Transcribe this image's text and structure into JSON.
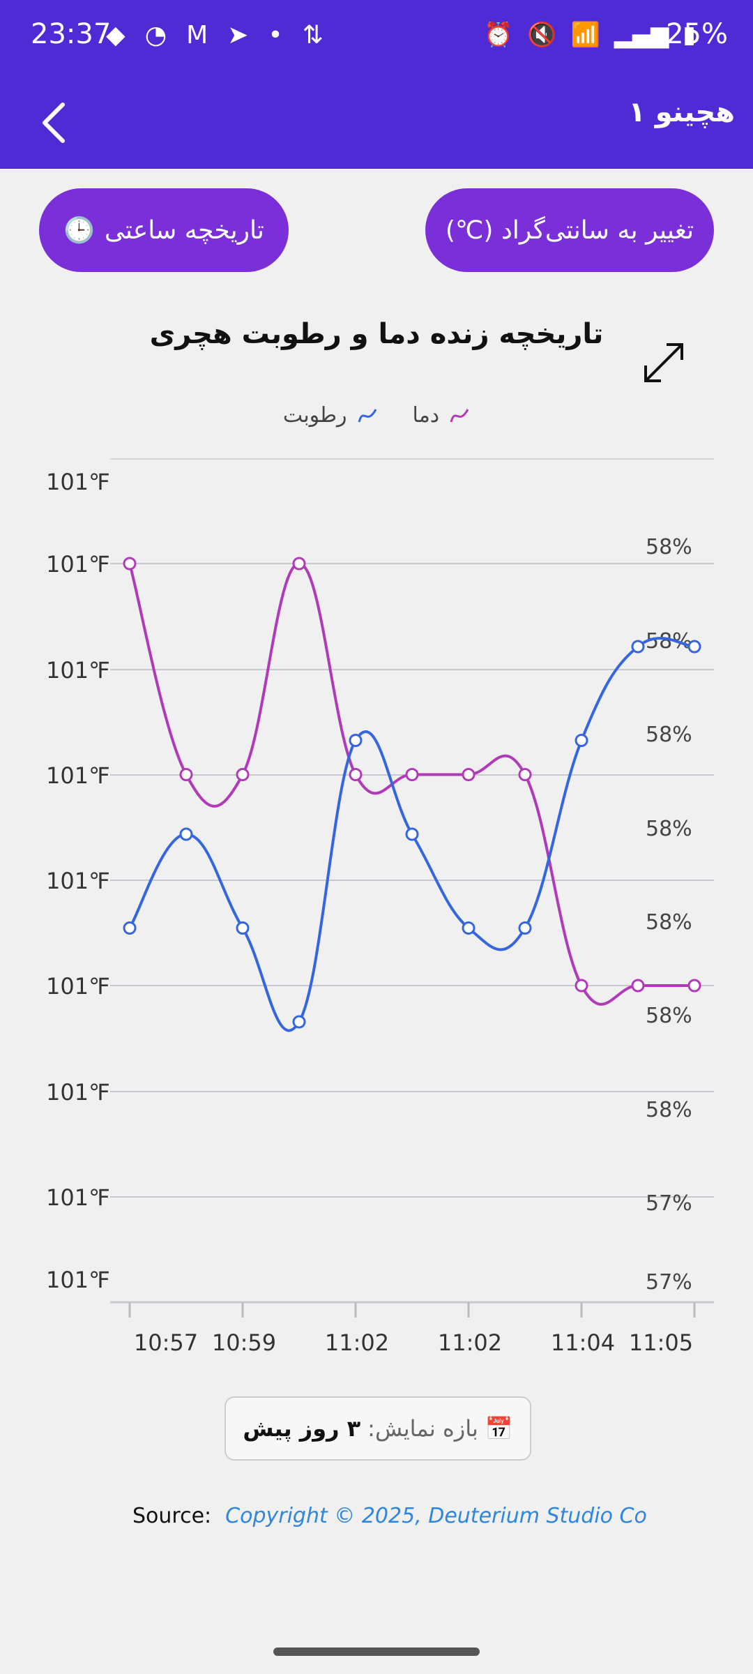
{
  "status_bar": {
    "time": "23:37",
    "battery": "25%",
    "left_icons": [
      "shield-icon",
      "sync-icon",
      "gmail-icon",
      "telegram-icon",
      "dot-icon",
      "data-transfer-icon"
    ],
    "right_icons": [
      "alarm-icon",
      "mute-icon",
      "wifi-icon",
      "signal-icon",
      "hd-signal-icon",
      "battery-icon"
    ]
  },
  "appbar": {
    "title": "هچینو ۱"
  },
  "buttons": {
    "unit_toggle": "تغییر به سانتی‌گراد (℃)",
    "hourly_history": "تاریخچه ساعتی",
    "hourly_history_icon": "🕒"
  },
  "chart_title": "تاریخچه زنده دما و رطوبت هچری",
  "legend": {
    "temperature": "دما",
    "humidity": "رطوبت"
  },
  "colors": {
    "primary": "#4f2bd6",
    "button": "#7b2fd9",
    "temperature": "#b03ab8",
    "humidity": "#3566e0"
  },
  "chart_data": {
    "type": "line",
    "x_tick_labels": [
      "10:57",
      "10:59",
      "11:02",
      "11:02",
      "11:04",
      "11:05"
    ],
    "y_left_tick_labels": [
      "101℉",
      "101℉",
      "101℉",
      "101℉",
      "101℉",
      "101℉",
      "101℉",
      "101℉",
      "101℉"
    ],
    "y_right_tick_labels": [
      "58%",
      "58%",
      "58%",
      "58%",
      "58%",
      "58%",
      "58%",
      "57%",
      "57%"
    ],
    "series": [
      {
        "name": "دما",
        "axis": "left",
        "values": [
          101.4,
          101.0,
          101.0,
          101.4,
          101.0,
          101.0,
          101.0,
          101.0,
          100.6,
          100.6,
          100.6
        ]
      },
      {
        "name": "رطوبت",
        "axis": "right",
        "values": [
          57.65,
          57.75,
          57.65,
          57.55,
          57.85,
          57.75,
          57.65,
          57.65,
          57.85,
          57.95,
          57.95
        ]
      }
    ],
    "grid": true
  },
  "range": {
    "icon": "📅",
    "label": "بازه نمایش:",
    "value": "۳ روز پیش"
  },
  "source": {
    "label": "Source:",
    "text": "Copyright © 2025, Deuterium Studio Co"
  }
}
